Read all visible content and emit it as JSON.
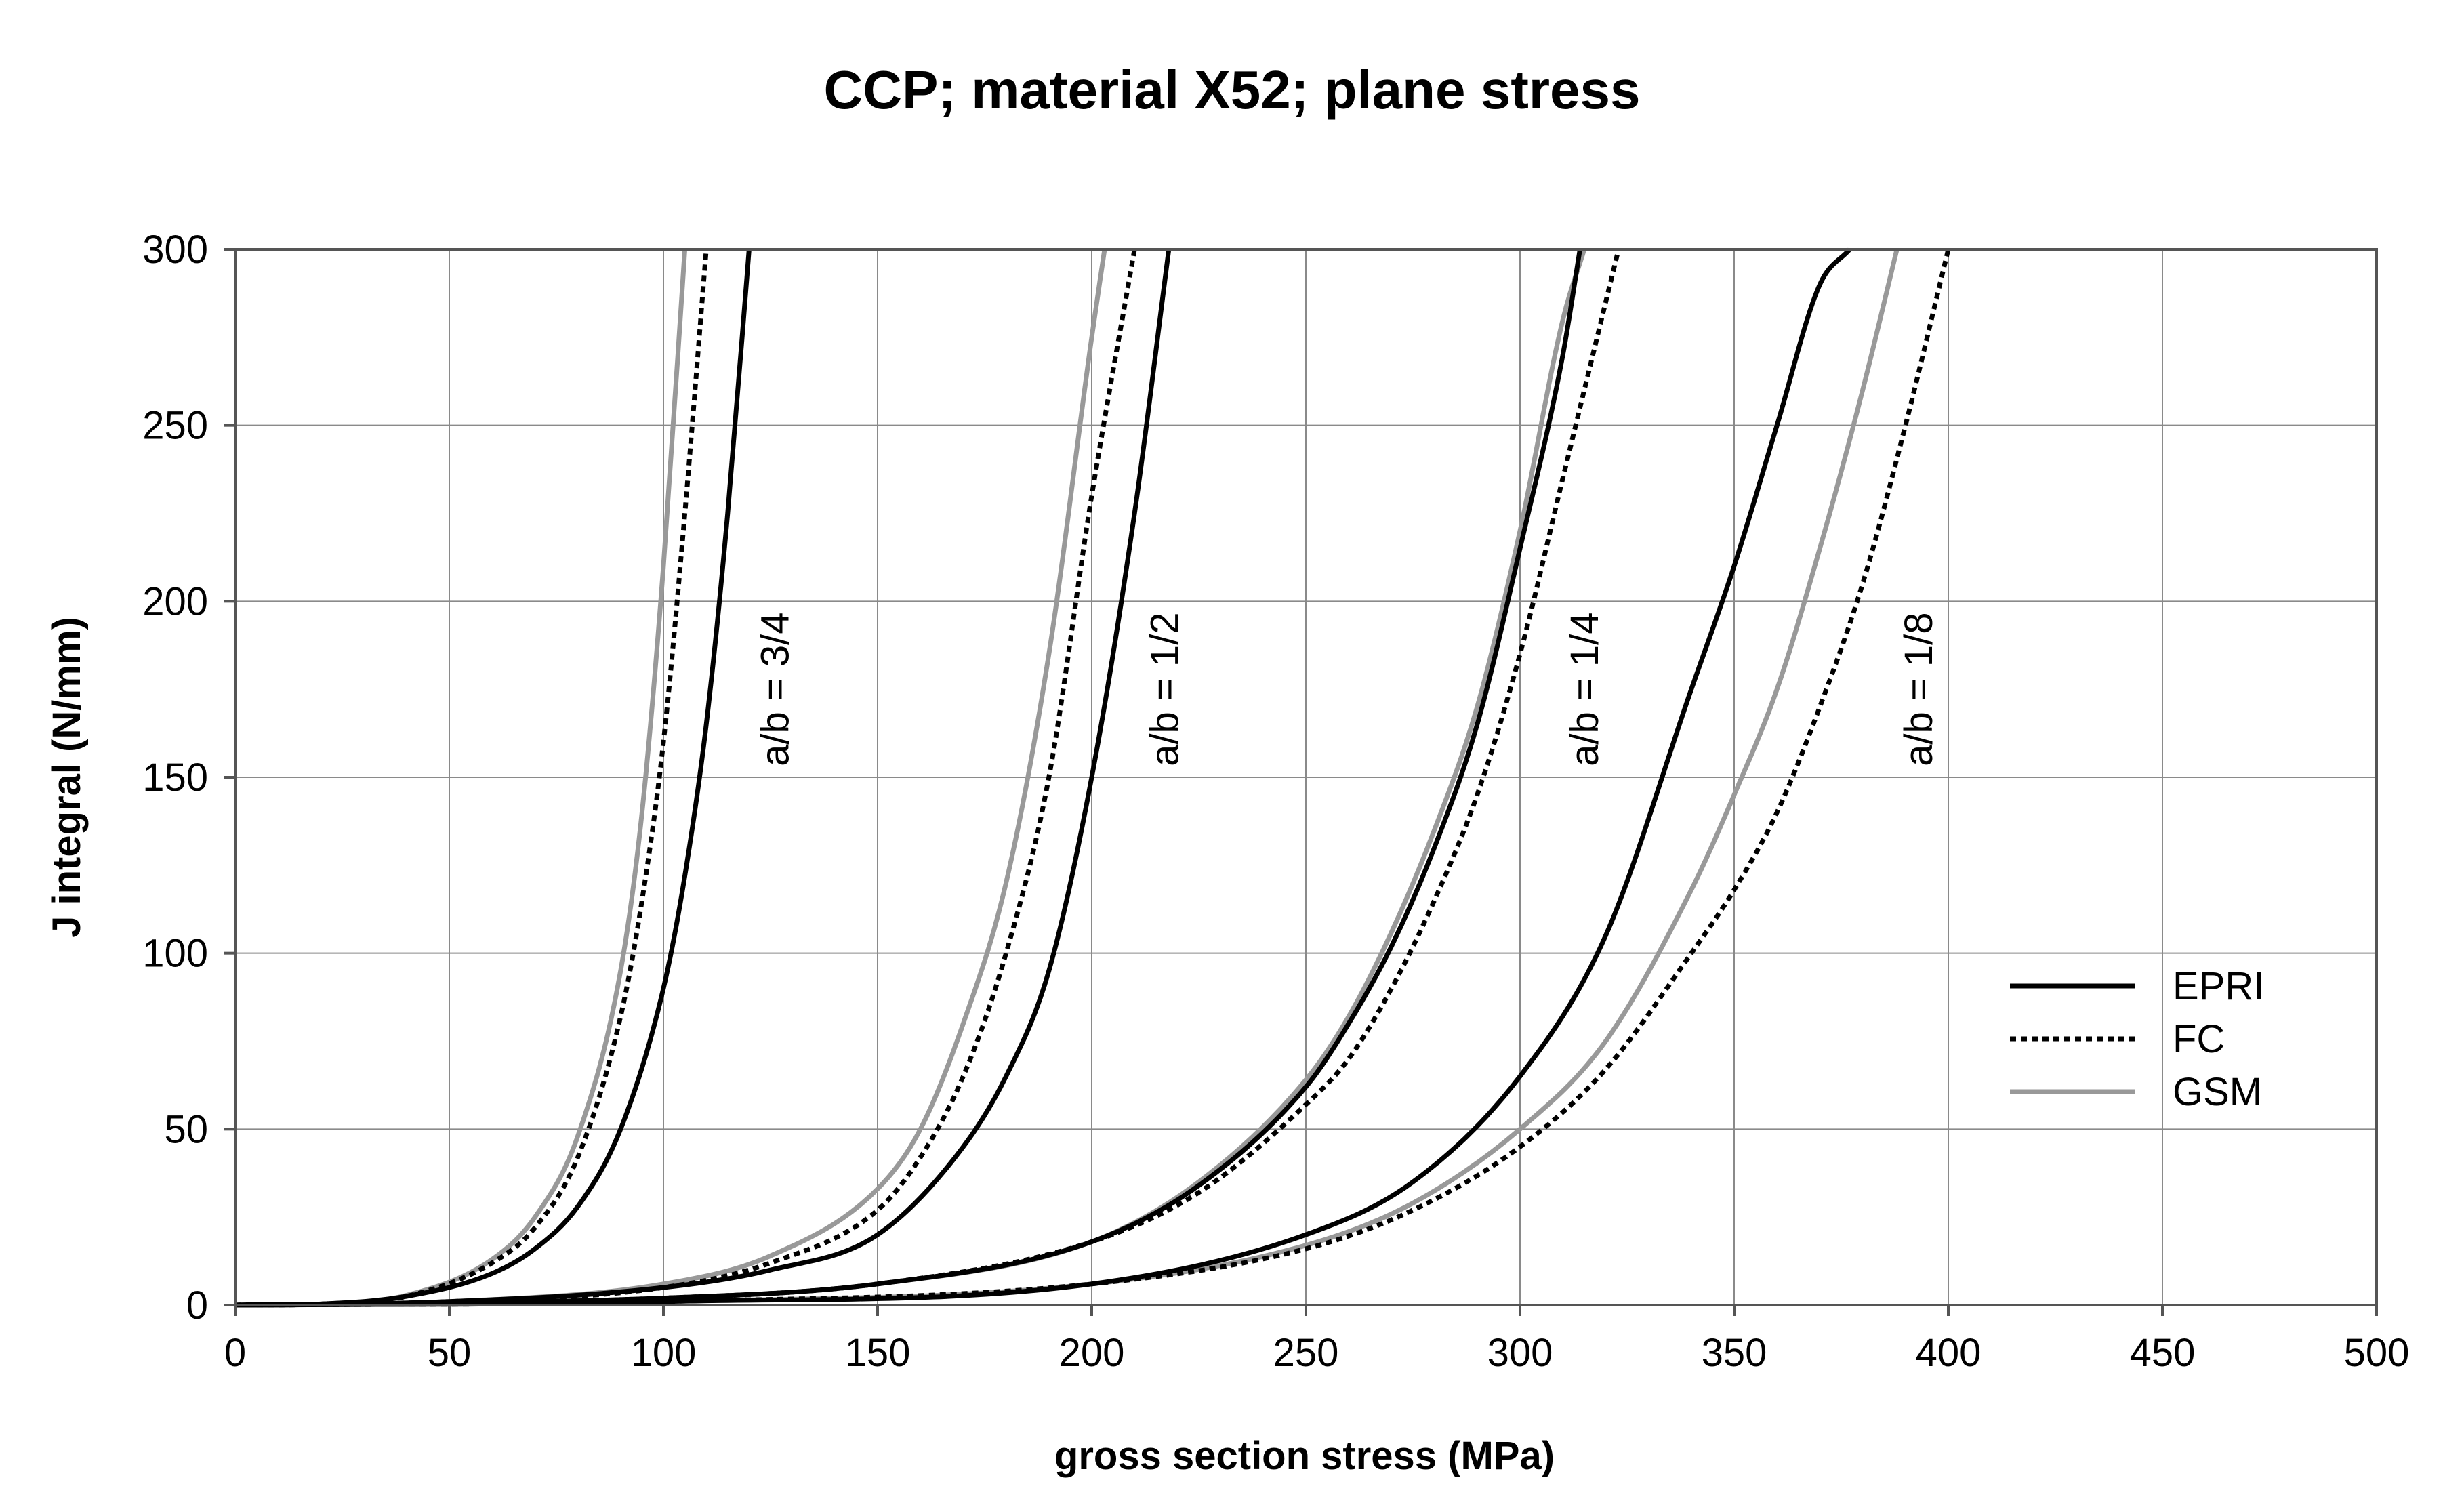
{
  "chart_data": {
    "type": "line",
    "title": "CCP; material X52; plane stress",
    "xlabel": "gross section stress (MPa)",
    "ylabel": "J integral (N/mm)",
    "xlim": [
      0,
      500
    ],
    "ylim": [
      0,
      300
    ],
    "x_ticks": [
      "0",
      "50",
      "100",
      "150",
      "200",
      "250",
      "300",
      "350",
      "400",
      "450",
      "500"
    ],
    "y_ticks": [
      "0",
      "50",
      "100",
      "150",
      "200",
      "250",
      "300"
    ],
    "grid": true,
    "legend_position": "right",
    "legend": [
      {
        "name": "EPRI",
        "style": "solid",
        "color": "#000000"
      },
      {
        "name": "FC",
        "style": "dotted",
        "color": "#000000"
      },
      {
        "name": "GSM",
        "style": "solid",
        "color": "#999999"
      }
    ],
    "annotations": [
      {
        "text": "a/b = 3/4",
        "x": 126,
        "y": 175
      },
      {
        "text": "a/b = 1/2",
        "x": 217,
        "y": 175
      },
      {
        "text": "a/b = 1/4",
        "x": 315,
        "y": 175
      },
      {
        "text": "a/b = 1/8",
        "x": 393,
        "y": 175
      }
    ],
    "series": [
      {
        "name": "EPRI a/b = 3/4",
        "method": "EPRI",
        "ratio": "3/4",
        "x": [
          0,
          20,
          40,
          60,
          70,
          80,
          90,
          100,
          105,
          110,
          115,
          120
        ],
        "y": [
          0,
          0.3,
          2.5,
          9,
          16,
          28,
          50,
          90,
          122,
          165,
          225,
          300
        ]
      },
      {
        "name": "FC a/b = 3/4",
        "method": "FC",
        "ratio": "3/4",
        "x": [
          0,
          20,
          40,
          60,
          70,
          80,
          90,
          95,
          100,
          105,
          110
        ],
        "y": [
          0,
          0.3,
          2.5,
          12,
          22,
          42,
          82,
          115,
          160,
          225,
          300
        ]
      },
      {
        "name": "GSM a/b = 3/4",
        "method": "GSM",
        "ratio": "3/4",
        "x": [
          0,
          20,
          40,
          60,
          70,
          80,
          90,
          95,
          100,
          105
        ],
        "y": [
          0,
          0.3,
          2.8,
          13,
          25,
          48,
          95,
          140,
          210,
          300
        ]
      },
      {
        "name": "EPRI a/b = 1/2",
        "method": "EPRI",
        "ratio": "1/2",
        "x": [
          0,
          50,
          100,
          125,
          150,
          170,
          180,
          190,
          200,
          210,
          218
        ],
        "y": [
          0,
          1,
          5,
          10,
          20,
          45,
          65,
          95,
          150,
          225,
          300
        ]
      },
      {
        "name": "FC a/b = 1/2",
        "method": "FC",
        "ratio": "1/2",
        "x": [
          0,
          50,
          100,
          125,
          150,
          160,
          170,
          180,
          190,
          200,
          210
        ],
        "y": [
          0,
          1,
          5,
          12,
          27,
          42,
          65,
          100,
          150,
          230,
          300
        ]
      },
      {
        "name": "GSM a/b = 1/2",
        "method": "GSM",
        "ratio": "1/2",
        "x": [
          0,
          50,
          100,
          125,
          150,
          160,
          170,
          180,
          190,
          200,
          203
        ],
        "y": [
          0,
          1,
          6,
          14,
          33,
          50,
          80,
          120,
          185,
          275,
          300
        ]
      },
      {
        "name": "EPRI a/b = 1/4",
        "method": "EPRI",
        "ratio": "1/4",
        "x": [
          0,
          100,
          150,
          200,
          225,
          250,
          260,
          270,
          280,
          290,
          300,
          310,
          314
        ],
        "y": [
          0,
          2,
          6,
          18,
          34,
          62,
          80,
          102,
          130,
          165,
          215,
          270,
          300
        ]
      },
      {
        "name": "FC a/b = 1/4",
        "method": "FC",
        "ratio": "1/4",
        "x": [
          0,
          100,
          150,
          200,
          225,
          250,
          260,
          270,
          280,
          290,
          300,
          310,
          323
        ],
        "y": [
          0,
          2,
          6,
          18,
          32,
          57,
          70,
          90,
          115,
          145,
          185,
          235,
          300
        ]
      },
      {
        "name": "GSM a/b = 1/4",
        "method": "GSM",
        "ratio": "1/4",
        "x": [
          0,
          100,
          150,
          200,
          225,
          250,
          260,
          270,
          280,
          290,
          300,
          310,
          315
        ],
        "y": [
          0,
          2,
          6,
          18,
          35,
          64,
          82,
          106,
          135,
          170,
          220,
          280,
          300
        ]
      },
      {
        "name": "EPRI a/b = 1/8",
        "method": "EPRI",
        "ratio": "1/8",
        "x": [
          0,
          100,
          200,
          250,
          275,
          300,
          320,
          340,
          350,
          360,
          370,
          377
        ],
        "y": [
          0,
          1,
          6,
          20,
          35,
          65,
          105,
          175,
          210,
          250,
          290,
          300
        ]
      },
      {
        "name": "FC a/b = 1/8",
        "method": "FC",
        "ratio": "1/8",
        "x": [
          0,
          100,
          200,
          250,
          275,
          300,
          320,
          340,
          350,
          360,
          370,
          380,
          390,
          400
        ],
        "y": [
          0,
          1,
          6,
          16,
          27,
          45,
          67,
          100,
          118,
          140,
          170,
          205,
          250,
          300
        ]
      },
      {
        "name": "GSM a/b = 1/8",
        "method": "GSM",
        "ratio": "1/8",
        "x": [
          0,
          100,
          200,
          250,
          275,
          300,
          320,
          340,
          350,
          360,
          370,
          380,
          388
        ],
        "y": [
          0,
          1,
          6,
          17,
          29,
          50,
          75,
          118,
          145,
          175,
          215,
          260,
          300
        ]
      }
    ]
  }
}
